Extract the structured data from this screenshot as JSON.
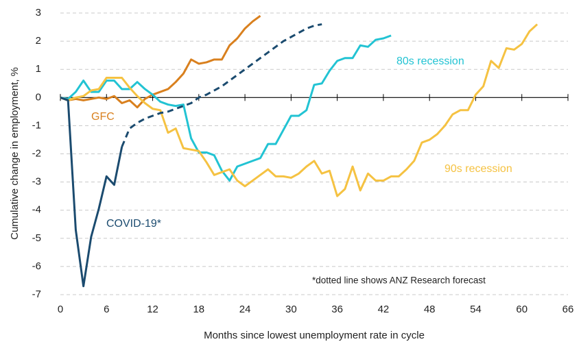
{
  "chart_data": {
    "type": "line",
    "x_label": "Months since lowest unemployment rate in cycle",
    "y_label": "Cumulative change in employment, %",
    "xlim": [
      0,
      66
    ],
    "xticks": [
      0,
      6,
      12,
      18,
      24,
      30,
      36,
      42,
      48,
      54,
      60,
      66
    ],
    "ylim": [
      -7,
      3
    ],
    "yticks": [
      -7,
      -6,
      -5,
      -4,
      -3,
      -2,
      -1,
      0,
      1,
      2,
      3
    ],
    "grid": true,
    "x": [
      0,
      1,
      2,
      3,
      4,
      5,
      6,
      7,
      8,
      9,
      10,
      11,
      12,
      13,
      14,
      15,
      16,
      17,
      18,
      19,
      20,
      21,
      22,
      23,
      24,
      25,
      26,
      27,
      28,
      29,
      30,
      31,
      32,
      33,
      34,
      35,
      36,
      37,
      38,
      39,
      40,
      41,
      42,
      43,
      44,
      45,
      46,
      47,
      48,
      49,
      50,
      51,
      52,
      53,
      54,
      55,
      56,
      57,
      58,
      59,
      60,
      61,
      62
    ],
    "series": [
      {
        "name": "GFC",
        "color": "#d9801e",
        "values": [
          0,
          -0.1,
          -0.05,
          -0.1,
          -0.05,
          0,
          -0.05,
          0.05,
          -0.2,
          -0.1,
          -0.35,
          -0.05,
          0.1,
          0.2,
          0.3,
          0.55,
          0.85,
          1.35,
          1.2,
          1.25,
          1.35,
          1.35,
          1.85,
          2.1,
          2.45,
          2.7,
          2.9,
          null,
          null,
          null,
          null,
          null,
          null,
          null,
          null,
          null,
          null,
          null,
          null,
          null,
          null,
          null,
          null,
          null,
          null,
          null,
          null,
          null,
          null,
          null,
          null,
          null,
          null,
          null,
          null,
          null,
          null,
          null,
          null,
          null,
          null,
          null,
          null
        ]
      },
      {
        "name": "80s recession",
        "color": "#22c3d3",
        "values": [
          0,
          -0.05,
          0.2,
          0.6,
          0.2,
          0.2,
          0.6,
          0.6,
          0.3,
          0.3,
          0.55,
          0.3,
          0.1,
          -0.15,
          -0.25,
          -0.3,
          -0.25,
          -1.45,
          -1.95,
          -1.95,
          -2.05,
          -2.6,
          -2.95,
          -2.45,
          -2.35,
          -2.25,
          -2.15,
          -1.65,
          -1.65,
          -1.15,
          -0.65,
          -0.65,
          -0.45,
          0.45,
          0.5,
          0.95,
          1.3,
          1.4,
          1.4,
          1.85,
          1.8,
          2.05,
          2.1,
          2.2,
          null,
          null,
          null,
          null,
          null,
          null,
          null,
          null,
          null,
          null,
          null,
          null,
          null,
          null,
          null,
          null,
          null,
          null,
          null
        ]
      },
      {
        "name": "90s recession",
        "color": "#f5c242",
        "values": [
          0,
          -0.1,
          0,
          0.05,
          0.25,
          0.3,
          0.7,
          0.7,
          0.7,
          0.35,
          0.05,
          -0.2,
          -0.4,
          -0.45,
          -1.25,
          -1.1,
          -1.8,
          -1.85,
          -1.9,
          -2.3,
          -2.75,
          -2.65,
          -2.55,
          -2.95,
          -3.15,
          -2.95,
          -2.75,
          -2.55,
          -2.8,
          -2.8,
          -2.85,
          -2.7,
          -2.45,
          -2.25,
          -2.7,
          -2.6,
          -3.5,
          -3.25,
          -2.45,
          -3.3,
          -2.7,
          -2.95,
          -2.95,
          -2.8,
          -2.8,
          -2.55,
          -2.25,
          -1.6,
          -1.5,
          -1.3,
          -1.0,
          -0.6,
          -0.45,
          -0.45,
          0.1,
          0.4,
          1.3,
          1.05,
          1.75,
          1.7,
          1.9,
          2.35,
          2.6
        ]
      },
      {
        "name": "COVID-19*",
        "color": "#1b4b6f",
        "values": [
          0,
          -0.1,
          -4.7,
          -6.7,
          -4.95,
          -3.95,
          -2.8,
          -3.1,
          -1.75,
          null,
          null,
          null,
          null,
          null,
          null,
          null,
          null,
          null,
          null,
          null,
          null,
          null,
          null,
          null,
          null,
          null,
          null,
          null,
          null,
          null,
          null,
          null,
          null,
          null,
          null,
          null,
          null,
          null,
          null,
          null,
          null,
          null,
          null,
          null,
          null,
          null,
          null,
          null,
          null,
          null,
          null,
          null,
          null,
          null,
          null,
          null,
          null,
          null,
          null,
          null,
          null,
          null,
          null
        ]
      },
      {
        "color": "#1b4b6f",
        "dashed": true,
        "values": [
          null,
          null,
          null,
          null,
          null,
          null,
          null,
          null,
          -1.75,
          -1.1,
          -0.9,
          -0.75,
          -0.65,
          -0.55,
          -0.5,
          -0.4,
          -0.3,
          -0.2,
          0,
          0.1,
          0.25,
          0.4,
          0.6,
          0.8,
          1.0,
          1.2,
          1.4,
          1.6,
          1.8,
          2.0,
          2.15,
          2.3,
          2.45,
          2.55,
          2.6,
          null,
          null,
          null,
          null,
          null,
          null,
          null,
          null,
          null,
          null,
          null,
          null,
          null,
          null,
          null,
          null,
          null,
          null,
          null,
          null,
          null,
          null,
          null,
          null,
          null,
          null,
          null,
          null
        ]
      }
    ],
    "annotations": [
      "*dotted line shows ANZ Research forecast"
    ]
  }
}
